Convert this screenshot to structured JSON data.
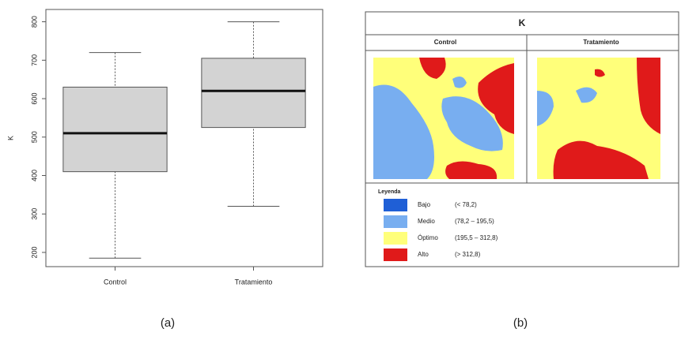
{
  "chart_data": {
    "type": "boxplot",
    "ylabel": "K",
    "categories": [
      "Control",
      "Tratamiento"
    ],
    "min": [
      185,
      320
    ],
    "q1": [
      410,
      525
    ],
    "median": [
      510,
      620
    ],
    "q3": [
      630,
      705
    ],
    "max": [
      720,
      800
    ],
    "color": "#d3d3d3",
    "ylim": [
      163,
      832
    ],
    "yticks": [
      200,
      300,
      400,
      500,
      600,
      700,
      800
    ]
  },
  "map": {
    "title": "K",
    "panels": [
      "Control",
      "Tratamiento"
    ],
    "legend": {
      "title": "Leyenda",
      "items": [
        {
          "name": "Bajo",
          "range": "(< 78,2)",
          "color": "#1f5fd6"
        },
        {
          "name": "Medio",
          "range": "(78,2 – 195,5)",
          "color": "#78aef0"
        },
        {
          "name": "Óptimo",
          "range": "(195,5 – 312,8)",
          "color": "#ffff7a"
        },
        {
          "name": "Alto",
          "range": "(> 312,8)",
          "color": "#e01a1a"
        }
      ]
    }
  },
  "captions": [
    "(a)",
    "(b)"
  ]
}
